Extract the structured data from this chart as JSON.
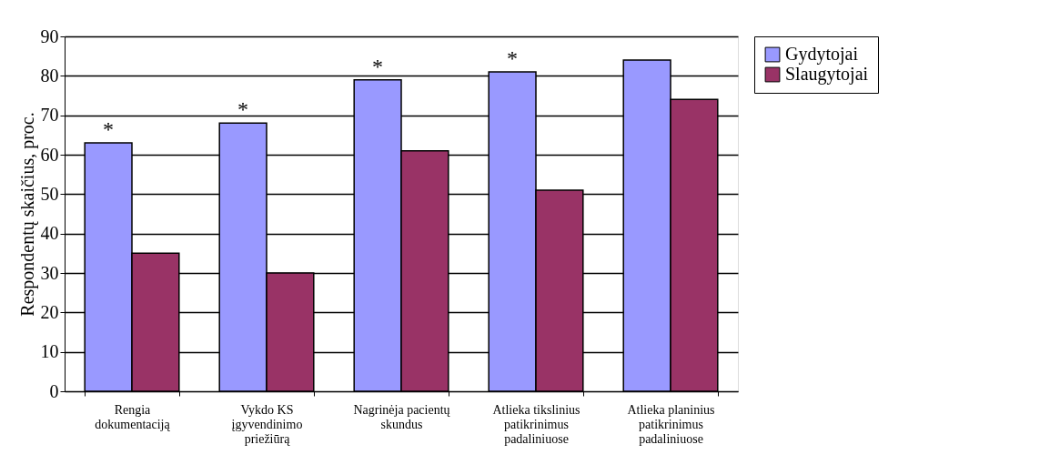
{
  "chart_data": {
    "type": "bar",
    "ylabel": "Respondentų skaičius, proc.",
    "categories": [
      "Rengia dokumentaciją",
      "Vykdo KS įgyvendinimo priežiūrą",
      "Nagrinėja pacientų skundus",
      "Atlieka tikslinius patikrinimus padaliniuose",
      "Atlieka planinius patikrinimus padaliniuose"
    ],
    "series": [
      {
        "name": "Gydytojai",
        "color": "#9999ff",
        "values": [
          63,
          68,
          79,
          81,
          84
        ]
      },
      {
        "name": "Slaugytojai",
        "color": "#993366",
        "values": [
          35,
          30,
          61,
          51,
          74
        ]
      }
    ],
    "ylim": [
      0,
      90
    ],
    "yticks": [
      0,
      10,
      20,
      30,
      40,
      50,
      60,
      70,
      80,
      90
    ],
    "grid": "y",
    "legend": "right",
    "annotations": [
      {
        "text": "*",
        "x": "Rengia dokumentaciją",
        "y": 63
      },
      {
        "text": "*",
        "x": "Vykdo KS įgyvendinimo priežiūrą",
        "y": 68
      },
      {
        "text": "*",
        "x": "Nagrinėja pacientų skundus",
        "y": 79
      },
      {
        "text": "*",
        "x": "Atlieka tikslinius patikrinimus padaliniuose",
        "y": 81
      }
    ]
  }
}
